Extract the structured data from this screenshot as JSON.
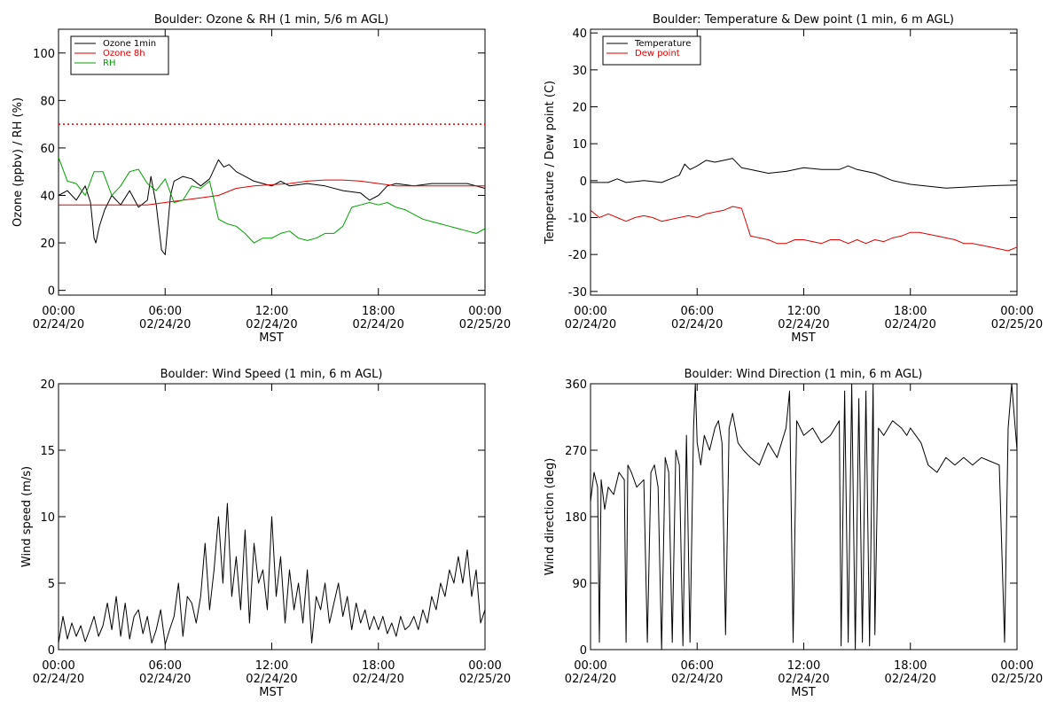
{
  "chart_data": [
    {
      "type": "line",
      "title": "Boulder: Ozone & RH (1 min, 5/6 m AGL)",
      "ylabel": "Ozone (ppbv) / RH (%)",
      "xlabel": "MST",
      "xlim": [
        0,
        24
      ],
      "ylim": [
        -2,
        110
      ],
      "x_ticks": [
        0,
        6,
        12,
        18,
        24
      ],
      "x_tick_labels": [
        {
          "time": "00:00",
          "date": "02/24/20"
        },
        {
          "time": "06:00",
          "date": "02/24/20"
        },
        {
          "time": "12:00",
          "date": "02/24/20"
        },
        {
          "time": "18:00",
          "date": "02/24/20"
        },
        {
          "time": "00:00",
          "date": "02/25/20"
        }
      ],
      "y_ticks": [
        0,
        20,
        40,
        60,
        80,
        100
      ],
      "legend_position": "top-left",
      "reference_line": {
        "y": 70,
        "color": "#e00000",
        "style": "dotted"
      },
      "series": [
        {
          "name": "Ozone 1min",
          "color": "#000000",
          "x": [
            0,
            0.5,
            1,
            1.5,
            1.8,
            2,
            2.1,
            2.3,
            2.6,
            3,
            3.5,
            4,
            4.5,
            5,
            5.2,
            5.5,
            5.8,
            6,
            6.3,
            6.5,
            7,
            7.5,
            8,
            8.5,
            9,
            9.3,
            9.6,
            10,
            10.5,
            11,
            11.5,
            12,
            12.5,
            13,
            14,
            15,
            16,
            17,
            17.5,
            18,
            18.5,
            19,
            20,
            21,
            22,
            23,
            24
          ],
          "y": [
            40,
            42,
            38,
            44,
            37,
            22,
            20,
            27,
            34,
            40,
            36,
            42,
            35,
            38,
            48,
            36,
            17,
            15,
            40,
            46,
            48,
            47,
            44,
            47,
            55,
            52,
            53,
            50,
            48,
            46,
            45,
            44,
            46,
            44,
            45,
            44,
            42,
            41,
            38,
            40,
            44,
            45,
            44,
            45,
            45,
            45,
            43
          ]
        },
        {
          "name": "Ozone 8h",
          "color": "#e00000",
          "x": [
            0,
            1,
            2,
            3,
            4,
            5,
            6,
            7,
            8,
            9,
            10,
            11,
            12,
            13,
            14,
            15,
            16,
            17,
            18,
            19,
            20,
            21,
            22,
            23,
            24
          ],
          "y": [
            36,
            36,
            36,
            36,
            36,
            36,
            37,
            38,
            39,
            40,
            43,
            44,
            44.5,
            45,
            46,
            46.5,
            46.5,
            46,
            45,
            44,
            44,
            44,
            44,
            44,
            44
          ]
        },
        {
          "name": "RH",
          "color": "#00a000",
          "x": [
            0,
            0.5,
            1,
            1.5,
            2,
            2.5,
            3,
            3.5,
            4,
            4.5,
            5,
            5.5,
            6,
            6.5,
            7,
            7.5,
            8,
            8.5,
            9,
            9.5,
            10,
            10.5,
            11,
            11.5,
            12,
            12.5,
            13,
            13.5,
            14,
            14.5,
            15,
            15.5,
            16,
            16.5,
            17,
            17.5,
            18,
            18.5,
            19,
            19.5,
            20,
            20.5,
            21,
            21.5,
            22,
            22.5,
            23,
            23.5,
            24
          ],
          "y": [
            56,
            46,
            45,
            40,
            50,
            50,
            40,
            44,
            50,
            51,
            45,
            42,
            47,
            37,
            38,
            44,
            43,
            46,
            30,
            28,
            27,
            24,
            20,
            22,
            22,
            24,
            25,
            22,
            21,
            22,
            24,
            24,
            27,
            35,
            36,
            37,
            36,
            37,
            35,
            34,
            32,
            30,
            29,
            28,
            27,
            26,
            25,
            24,
            26
          ]
        }
      ]
    },
    {
      "type": "line",
      "title": "Boulder: Temperature & Dew point (1 min, 6 m AGL)",
      "ylabel": "Temperature / Dew point (C)",
      "xlabel": "MST",
      "xlim": [
        0,
        24
      ],
      "ylim": [
        -31,
        41
      ],
      "x_ticks": [
        0,
        6,
        12,
        18,
        24
      ],
      "x_tick_labels": [
        {
          "time": "00:00",
          "date": "02/24/20"
        },
        {
          "time": "06:00",
          "date": "02/24/20"
        },
        {
          "time": "12:00",
          "date": "02/24/20"
        },
        {
          "time": "18:00",
          "date": "02/24/20"
        },
        {
          "time": "00:00",
          "date": "02/25/20"
        }
      ],
      "y_ticks": [
        -30,
        -20,
        -10,
        0,
        10,
        20,
        30,
        40
      ],
      "legend_position": "top-left",
      "series": [
        {
          "name": "Temperature",
          "color": "#000000",
          "x": [
            0,
            1,
            1.5,
            2,
            3,
            4,
            4.5,
            5,
            5.3,
            5.6,
            6,
            6.5,
            7,
            7.5,
            8,
            8.5,
            9,
            9.5,
            10,
            11,
            12,
            13,
            14,
            14.5,
            15,
            16,
            17,
            18,
            19,
            20,
            21,
            22,
            23,
            24
          ],
          "y": [
            -0.5,
            -0.5,
            0.5,
            -0.5,
            0,
            -0.5,
            0.5,
            1.5,
            4.5,
            3,
            4,
            5.5,
            5,
            5.5,
            6,
            3.5,
            3,
            2.5,
            2,
            2.5,
            3.5,
            3,
            3,
            4,
            3,
            2,
            0,
            -1,
            -1.5,
            -2,
            -1.8,
            -1.5,
            -1.3,
            -1.2
          ]
        },
        {
          "name": "Dew point",
          "color": "#e00000",
          "x": [
            0,
            0.5,
            1,
            1.5,
            2,
            2.5,
            3,
            3.5,
            4,
            4.5,
            5,
            5.5,
            6,
            6.5,
            7,
            7.5,
            8,
            8.5,
            9,
            9.5,
            10,
            10.5,
            11,
            11.5,
            12,
            12.5,
            13,
            13.5,
            14,
            14.5,
            15,
            15.5,
            16,
            16.5,
            17,
            17.5,
            18,
            18.5,
            19,
            19.5,
            20,
            20.5,
            21,
            21.5,
            22,
            22.5,
            23,
            23.5,
            24
          ],
          "y": [
            -8,
            -10,
            -9,
            -10,
            -11,
            -10,
            -9.5,
            -10,
            -11,
            -10.5,
            -10,
            -9.5,
            -10,
            -9,
            -8.5,
            -8,
            -7,
            -7.5,
            -15,
            -15.5,
            -16,
            -17,
            -17,
            -16,
            -16,
            -16.5,
            -17,
            -16,
            -16,
            -17,
            -16,
            -17,
            -16,
            -16.5,
            -15.5,
            -15,
            -14,
            -14,
            -14.5,
            -15,
            -15.5,
            -16,
            -17,
            -17,
            -17.5,
            -18,
            -18.5,
            -19,
            -18
          ]
        }
      ]
    },
    {
      "type": "line",
      "title": "Boulder: Wind Speed (1 min, 6 m AGL)",
      "ylabel": "Wind speed (m/s)",
      "xlabel": "MST",
      "xlim": [
        0,
        24
      ],
      "ylim": [
        0,
        20
      ],
      "x_ticks": [
        0,
        6,
        12,
        18,
        24
      ],
      "x_tick_labels": [
        {
          "time": "00:00",
          "date": "02/24/20"
        },
        {
          "time": "06:00",
          "date": "02/24/20"
        },
        {
          "time": "12:00",
          "date": "02/24/20"
        },
        {
          "time": "18:00",
          "date": "02/24/20"
        },
        {
          "time": "00:00",
          "date": "02/25/20"
        }
      ],
      "y_ticks": [
        0,
        5,
        10,
        15,
        20
      ],
      "series": [
        {
          "name": "",
          "color": "#000000",
          "x": [
            0,
            0.25,
            0.5,
            0.75,
            1,
            1.25,
            1.5,
            1.75,
            2,
            2.25,
            2.5,
            2.75,
            3,
            3.25,
            3.5,
            3.75,
            4,
            4.25,
            4.5,
            4.75,
            5,
            5.25,
            5.5,
            5.75,
            6,
            6.25,
            6.5,
            6.75,
            7,
            7.25,
            7.5,
            7.75,
            8,
            8.25,
            8.5,
            8.75,
            9,
            9.25,
            9.5,
            9.75,
            10,
            10.25,
            10.5,
            10.75,
            11,
            11.25,
            11.5,
            11.75,
            12,
            12.25,
            12.5,
            12.75,
            13,
            13.25,
            13.5,
            13.75,
            14,
            14.25,
            14.5,
            14.75,
            15,
            15.25,
            15.5,
            15.75,
            16,
            16.25,
            16.5,
            16.75,
            17,
            17.25,
            17.5,
            17.75,
            18,
            18.25,
            18.5,
            18.75,
            19,
            19.25,
            19.5,
            19.75,
            20,
            20.25,
            20.5,
            20.75,
            21,
            21.25,
            21.5,
            21.75,
            22,
            22.25,
            22.5,
            22.75,
            23,
            23.25,
            23.5,
            23.75,
            24
          ],
          "y": [
            0.5,
            2.5,
            0.8,
            2,
            1,
            1.8,
            0.6,
            1.5,
            2.5,
            1,
            1.8,
            3.5,
            1.5,
            4,
            1,
            3.5,
            0.8,
            2.5,
            3,
            1.2,
            2.5,
            0.5,
            1.5,
            3,
            0.4,
            1.5,
            2.5,
            5,
            1,
            4,
            3.5,
            2,
            4,
            8,
            3,
            6,
            10,
            5,
            11,
            4,
            7,
            3,
            9,
            2,
            8,
            5,
            6,
            3,
            10,
            4,
            7,
            2,
            6,
            3,
            5,
            2,
            6,
            0.5,
            4,
            3,
            5,
            2,
            3.5,
            5,
            2.5,
            4,
            1.5,
            3.5,
            2,
            3,
            1.5,
            2.5,
            1.5,
            2.5,
            1.2,
            2,
            1,
            2.5,
            1.5,
            1.8,
            2.5,
            1.5,
            3,
            2,
            4,
            3,
            5,
            4,
            6,
            5,
            7,
            5,
            7.5,
            4,
            6,
            2,
            3
          ]
        }
      ]
    },
    {
      "type": "line",
      "title": "Boulder: Wind Direction (1 min, 6 m AGL)",
      "ylabel": "Wind direction (deg)",
      "xlabel": "MST",
      "xlim": [
        0,
        24
      ],
      "ylim": [
        0,
        360
      ],
      "x_ticks": [
        0,
        6,
        12,
        18,
        24
      ],
      "x_tick_labels": [
        {
          "time": "00:00",
          "date": "02/24/20"
        },
        {
          "time": "06:00",
          "date": "02/24/20"
        },
        {
          "time": "12:00",
          "date": "02/24/20"
        },
        {
          "time": "18:00",
          "date": "02/24/20"
        },
        {
          "time": "00:00",
          "date": "02/25/20"
        }
      ],
      "y_ticks": [
        0,
        90,
        180,
        270,
        360
      ],
      "series": [
        {
          "name": "",
          "color": "#000000",
          "x": [
            0,
            0.2,
            0.4,
            0.5,
            0.6,
            0.8,
            1,
            1.3,
            1.6,
            1.9,
            2,
            2.1,
            2.3,
            2.6,
            3,
            3.2,
            3.4,
            3.6,
            3.8,
            4,
            4.2,
            4.4,
            4.6,
            4.8,
            5,
            5.2,
            5.4,
            5.6,
            5.8,
            5.9,
            6,
            6.2,
            6.4,
            6.7,
            7,
            7.2,
            7.4,
            7.6,
            7.8,
            8,
            8.3,
            8.6,
            9,
            9.5,
            10,
            10.5,
            11,
            11.2,
            11.4,
            11.6,
            12,
            12.5,
            13,
            13.5,
            14,
            14.1,
            14.3,
            14.5,
            14.7,
            14.9,
            15.1,
            15.3,
            15.5,
            15.7,
            15.9,
            16,
            16.2,
            16.5,
            17,
            17.5,
            17.8,
            18,
            18.3,
            18.6,
            19,
            19.5,
            20,
            20.5,
            21,
            21.5,
            22,
            22.5,
            23,
            23.3,
            23.5,
            23.7,
            24
          ],
          "y": [
            200,
            240,
            220,
            10,
            230,
            190,
            220,
            210,
            240,
            230,
            10,
            250,
            240,
            220,
            230,
            10,
            240,
            250,
            220,
            0,
            260,
            240,
            10,
            270,
            250,
            5,
            290,
            10,
            300,
            360,
            280,
            250,
            290,
            270,
            300,
            310,
            280,
            20,
            300,
            320,
            280,
            270,
            260,
            250,
            280,
            260,
            300,
            350,
            10,
            310,
            290,
            300,
            280,
            290,
            310,
            5,
            350,
            10,
            360,
            0,
            340,
            10,
            350,
            5,
            360,
            20,
            300,
            290,
            310,
            300,
            290,
            300,
            290,
            280,
            250,
            240,
            260,
            250,
            260,
            250,
            260,
            255,
            250,
            10,
            300,
            360,
            270
          ]
        }
      ]
    }
  ]
}
